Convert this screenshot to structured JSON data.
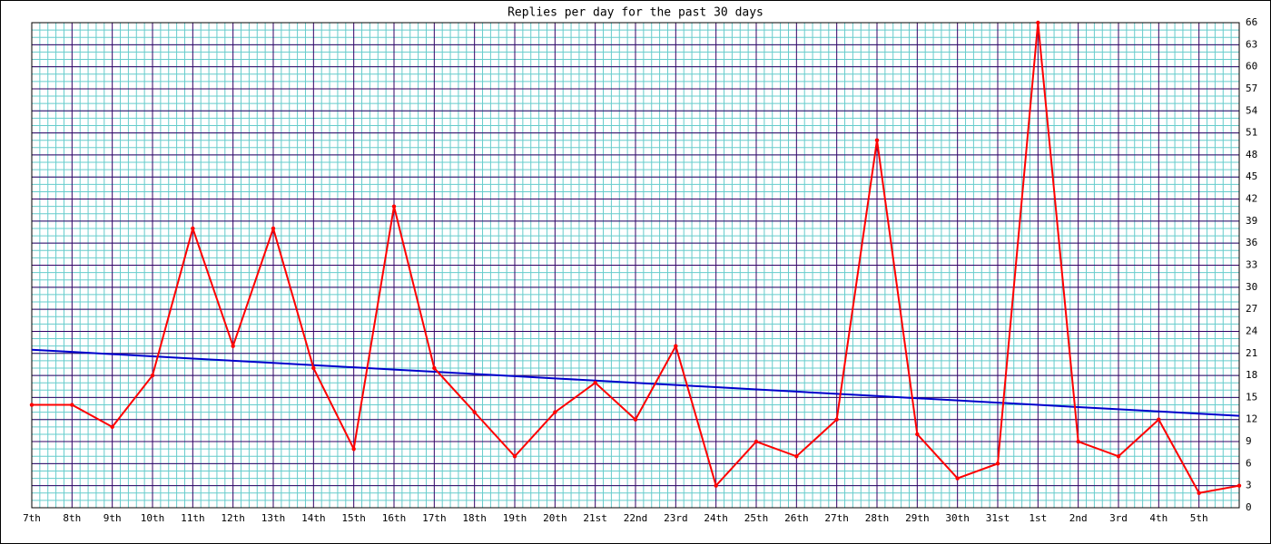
{
  "chart_data": {
    "type": "line",
    "title": "Replies per day for the past 30 days",
    "categories": [
      "7th",
      "8th",
      "9th",
      "10th",
      "11th",
      "12th",
      "13th",
      "14th",
      "15th",
      "16th",
      "17th",
      "18th",
      "19th",
      "20th",
      "21st",
      "22nd",
      "23rd",
      "24th",
      "25th",
      "26th",
      "27th",
      "28th",
      "29th",
      "30th",
      "31st",
      "1st",
      "2nd",
      "3rd",
      "4th",
      "5th",
      null
    ],
    "series": [
      {
        "color": "#ff0000",
        "values": [
          14,
          14,
          11,
          18,
          38,
          22,
          38,
          19,
          8,
          41,
          19,
          13,
          7,
          13,
          17,
          12,
          22,
          3,
          9,
          7,
          12,
          50,
          10,
          4,
          6,
          66,
          9,
          7,
          12,
          2,
          3
        ]
      }
    ],
    "trend_line": {
      "color": "#0000cc",
      "values": [
        21.5,
        21.2,
        20.9,
        20.6,
        20.3,
        20,
        19.7,
        19.4,
        19.1,
        18.8,
        18.5,
        18.2,
        17.9,
        17.6,
        17.3,
        17,
        16.7,
        16.4,
        16.1,
        15.8,
        15.5,
        15.2,
        14.9,
        14.6,
        14.3,
        14,
        13.7,
        13.4,
        13.1,
        12.8,
        12.5
      ]
    },
    "ylim": [
      0,
      66
    ],
    "yticks": [
      0,
      3,
      6,
      9,
      12,
      15,
      18,
      21,
      24,
      27,
      30,
      33,
      36,
      39,
      42,
      45,
      48,
      51,
      54,
      57,
      60,
      63,
      66
    ],
    "grid": true
  }
}
